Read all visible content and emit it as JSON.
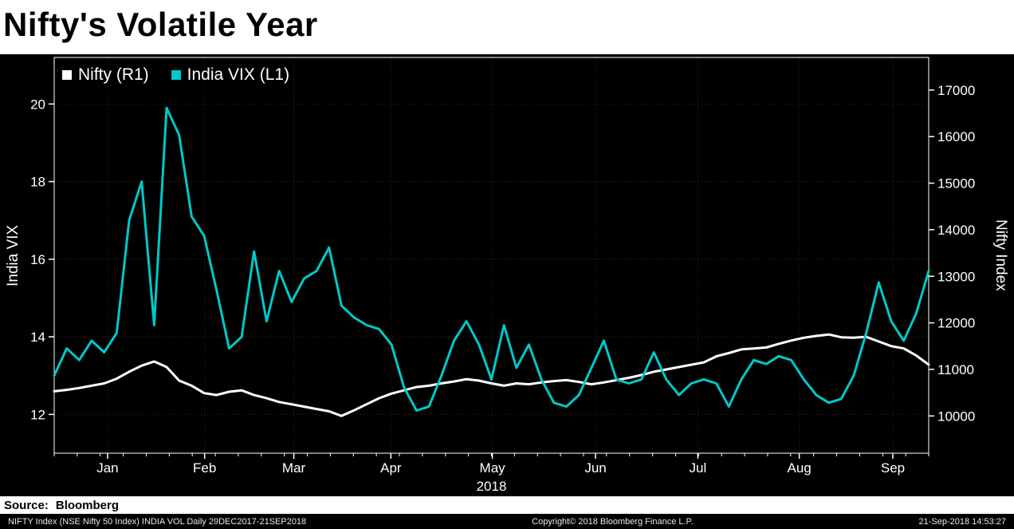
{
  "header": {
    "title": "Nifty's Volatile Year"
  },
  "legend": [
    {
      "label": "Nifty (R1)",
      "color": "#ffffff"
    },
    {
      "label": "India VIX (L1)",
      "color": "#00c9c9"
    }
  ],
  "chart_data": {
    "type": "line",
    "title": "Nifty's Volatile Year",
    "background": "#000000",
    "left_axis": {
      "label": "India VIX",
      "ticks": [
        12,
        14,
        16,
        18,
        20
      ],
      "range": [
        11.0,
        21.2
      ]
    },
    "right_axis": {
      "label": "Nifty Index",
      "ticks": [
        10000,
        11000,
        12000,
        13000,
        14000,
        15000,
        16000,
        17000
      ],
      "range": [
        9200,
        17700
      ]
    },
    "x_axis": {
      "year_label": "2018",
      "months": [
        {
          "label": "Jan",
          "pos": 0.061
        },
        {
          "label": "Feb",
          "pos": 0.172
        },
        {
          "label": "Mar",
          "pos": 0.274
        },
        {
          "label": "Apr",
          "pos": 0.385
        },
        {
          "label": "May",
          "pos": 0.501
        },
        {
          "label": "Jun",
          "pos": 0.619
        },
        {
          "label": "Jul",
          "pos": 0.736
        },
        {
          "label": "Aug",
          "pos": 0.852
        },
        {
          "label": "Sep",
          "pos": 0.959
        }
      ]
    },
    "series": [
      {
        "name": "Nifty (R1)",
        "axis": "right",
        "color": "#ffffff",
        "values": [
          10530,
          10560,
          10600,
          10650,
          10700,
          10800,
          10950,
          11080,
          11170,
          11050,
          10760,
          10650,
          10490,
          10450,
          10520,
          10550,
          10450,
          10380,
          10300,
          10250,
          10200,
          10150,
          10100,
          10000,
          10120,
          10250,
          10380,
          10480,
          10550,
          10620,
          10650,
          10700,
          10740,
          10790,
          10760,
          10700,
          10650,
          10700,
          10680,
          10720,
          10750,
          10770,
          10730,
          10680,
          10720,
          10770,
          10820,
          10880,
          10950,
          11000,
          11050,
          11100,
          11150,
          11280,
          11350,
          11430,
          11450,
          11470,
          11550,
          11620,
          11680,
          11720,
          11750,
          11690,
          11680,
          11700,
          11600,
          11500,
          11450,
          11300,
          11100
        ]
      },
      {
        "name": "India VIX (L1)",
        "axis": "left",
        "color": "#00c9c9",
        "values": [
          13.0,
          13.7,
          13.4,
          13.9,
          13.6,
          14.1,
          17.0,
          18.0,
          14.3,
          19.9,
          19.2,
          17.1,
          16.6,
          15.2,
          13.7,
          14.0,
          16.2,
          14.4,
          15.7,
          14.9,
          15.5,
          15.7,
          16.3,
          14.8,
          14.5,
          14.3,
          14.2,
          13.8,
          12.7,
          12.1,
          12.2,
          13.0,
          13.9,
          14.4,
          13.8,
          12.9,
          14.3,
          13.2,
          13.8,
          12.9,
          12.3,
          12.2,
          12.5,
          13.2,
          13.9,
          12.9,
          12.8,
          12.9,
          13.6,
          12.9,
          12.5,
          12.8,
          12.9,
          12.8,
          12.2,
          12.9,
          13.4,
          13.3,
          13.5,
          13.4,
          12.9,
          12.5,
          12.3,
          12.4,
          13.0,
          14.1,
          15.4,
          14.4,
          13.9,
          14.6,
          15.7
        ]
      }
    ]
  },
  "source": {
    "label": "Source:",
    "value": "Bloomberg"
  },
  "footer": {
    "left": "NIFTY Index (NSE Nifty 50 Index) INDIA VOL  Daily 29DEC2017-21SEP2018",
    "center": "Copyright© 2018 Bloomberg Finance L.P.",
    "right": "21-Sep-2018 14:53:27"
  }
}
